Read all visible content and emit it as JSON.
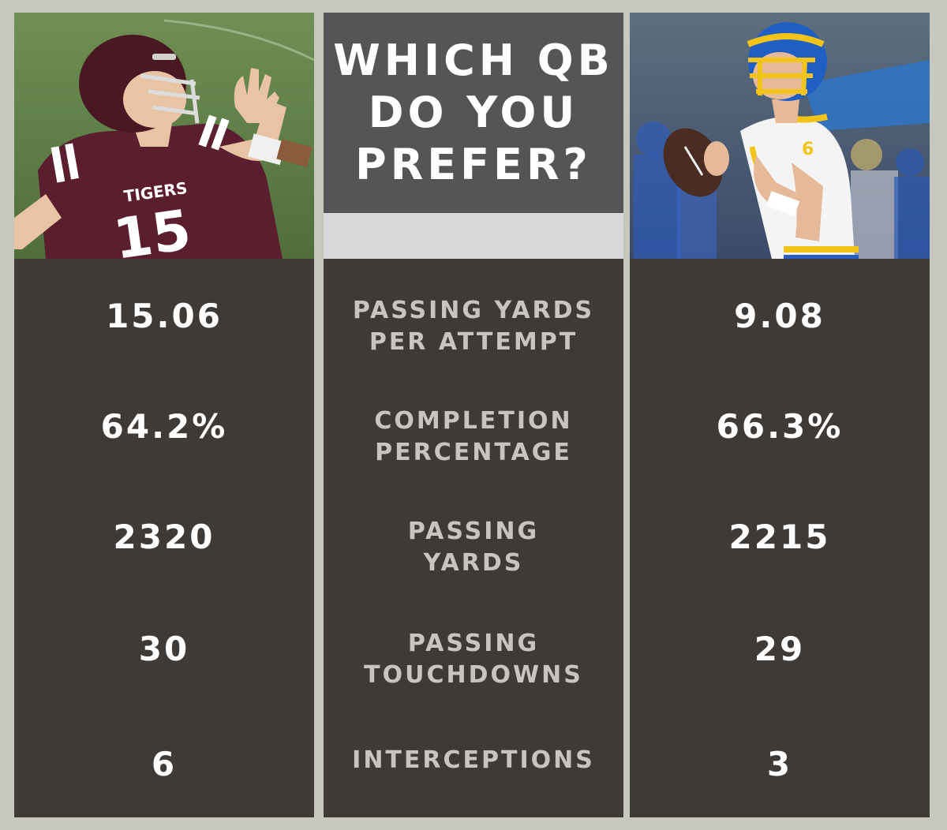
{
  "title": "WHICH QB\nDO YOU\nPREFER?",
  "left_player": {
    "jersey_text": "TIGERS",
    "jersey_number": "15",
    "colors": {
      "jersey": "#5a1e2e",
      "helmet": "#4a1822"
    }
  },
  "right_player": {
    "jersey_number": "6",
    "colors": {
      "jersey": "#f4f4f4",
      "helmet": "#1f5fc4",
      "accent": "#f2c418"
    }
  },
  "stats": [
    {
      "label": "PASSING YARDS\nPER ATTEMPT",
      "left": "15.06",
      "right": "9.08"
    },
    {
      "label": "COMPLETION\nPERCENTAGE",
      "left": "64.2%",
      "right": "66.3%"
    },
    {
      "label": "PASSING\nYARDS",
      "left": "2320",
      "right": "2215"
    },
    {
      "label": "PASSING\nTOUCHDOWNS",
      "left": "30",
      "right": "29"
    },
    {
      "label": "INTERCEPTIONS",
      "left": "6",
      "right": "3"
    }
  ]
}
